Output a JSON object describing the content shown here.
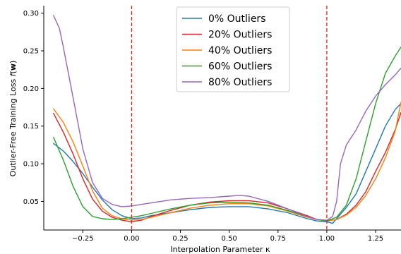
{
  "chart_data": {
    "type": "line",
    "title": "",
    "xlabel": "Interpolation Parameter κ",
    "ylabel": "Outlier-Free Training Loss f(w)",
    "ylabel_parts": {
      "main": "Outlier-Free Training Loss ",
      "func": "f",
      "open": "(",
      "var": "w",
      "close": ")"
    },
    "xlim": [
      -0.45,
      1.38
    ],
    "ylim": [
      0.012,
      0.31
    ],
    "x_ticks": [
      -0.25,
      0.0,
      0.25,
      0.5,
      0.75,
      1.0,
      1.25
    ],
    "x_tick_labels": [
      "−0.25",
      "0.00",
      "0.25",
      "0.50",
      "0.75",
      "1.00",
      "1.25"
    ],
    "y_ticks": [
      0.05,
      0.1,
      0.15,
      0.2,
      0.25,
      0.3
    ],
    "y_tick_labels": [
      "0.05",
      "0.10",
      "0.15",
      "0.20",
      "0.25",
      "0.30"
    ],
    "grid": false,
    "legend_position": "top-center",
    "reference_lines": [
      {
        "axis": "x",
        "value": 0.0,
        "style": "dashed",
        "color": "#d62728"
      },
      {
        "axis": "x",
        "value": 1.0,
        "style": "dashed",
        "color": "#d62728"
      }
    ],
    "series": [
      {
        "name": "0% Outliers",
        "color": "#1f77b4",
        "points": [
          [
            -0.4,
            0.127
          ],
          [
            -0.35,
            0.117
          ],
          [
            -0.3,
            0.103
          ],
          [
            -0.25,
            0.087
          ],
          [
            -0.2,
            0.069
          ],
          [
            -0.15,
            0.052
          ],
          [
            -0.1,
            0.039
          ],
          [
            -0.05,
            0.031
          ],
          [
            0.0,
            0.027
          ],
          [
            0.05,
            0.028
          ],
          [
            0.1,
            0.031
          ],
          [
            0.2,
            0.035
          ],
          [
            0.3,
            0.039
          ],
          [
            0.4,
            0.042
          ],
          [
            0.5,
            0.043
          ],
          [
            0.6,
            0.043
          ],
          [
            0.7,
            0.04
          ],
          [
            0.8,
            0.035
          ],
          [
            0.9,
            0.027
          ],
          [
            0.95,
            0.024
          ],
          [
            1.0,
            0.023
          ],
          [
            1.03,
            0.021
          ],
          [
            1.06,
            0.03
          ],
          [
            1.1,
            0.042
          ],
          [
            1.15,
            0.06
          ],
          [
            1.2,
            0.09
          ],
          [
            1.25,
            0.12
          ],
          [
            1.3,
            0.15
          ],
          [
            1.35,
            0.172
          ],
          [
            1.38,
            0.18
          ]
        ]
      },
      {
        "name": "20% Outliers",
        "color": "#d62728",
        "points": [
          [
            -0.4,
            0.167
          ],
          [
            -0.35,
            0.142
          ],
          [
            -0.3,
            0.113
          ],
          [
            -0.25,
            0.08
          ],
          [
            -0.2,
            0.053
          ],
          [
            -0.15,
            0.037
          ],
          [
            -0.1,
            0.029
          ],
          [
            -0.05,
            0.025
          ],
          [
            0.0,
            0.023
          ],
          [
            0.05,
            0.025
          ],
          [
            0.1,
            0.03
          ],
          [
            0.2,
            0.038
          ],
          [
            0.3,
            0.045
          ],
          [
            0.4,
            0.049
          ],
          [
            0.5,
            0.051
          ],
          [
            0.6,
            0.051
          ],
          [
            0.7,
            0.048
          ],
          [
            0.8,
            0.04
          ],
          [
            0.9,
            0.031
          ],
          [
            0.95,
            0.026
          ],
          [
            1.0,
            0.024
          ],
          [
            1.05,
            0.026
          ],
          [
            1.1,
            0.033
          ],
          [
            1.15,
            0.045
          ],
          [
            1.2,
            0.063
          ],
          [
            1.25,
            0.09
          ],
          [
            1.3,
            0.115
          ],
          [
            1.35,
            0.145
          ],
          [
            1.38,
            0.168
          ]
        ]
      },
      {
        "name": "40% Outliers",
        "color": "#ff7f0e",
        "points": [
          [
            -0.4,
            0.173
          ],
          [
            -0.35,
            0.155
          ],
          [
            -0.3,
            0.129
          ],
          [
            -0.25,
            0.097
          ],
          [
            -0.2,
            0.064
          ],
          [
            -0.15,
            0.041
          ],
          [
            -0.1,
            0.031
          ],
          [
            -0.05,
            0.027
          ],
          [
            0.0,
            0.025
          ],
          [
            0.05,
            0.026
          ],
          [
            0.1,
            0.029
          ],
          [
            0.2,
            0.035
          ],
          [
            0.3,
            0.041
          ],
          [
            0.4,
            0.045
          ],
          [
            0.5,
            0.047
          ],
          [
            0.6,
            0.047
          ],
          [
            0.7,
            0.044
          ],
          [
            0.8,
            0.037
          ],
          [
            0.9,
            0.029
          ],
          [
            0.95,
            0.026
          ],
          [
            1.0,
            0.024
          ],
          [
            1.05,
            0.026
          ],
          [
            1.1,
            0.032
          ],
          [
            1.15,
            0.042
          ],
          [
            1.2,
            0.058
          ],
          [
            1.25,
            0.08
          ],
          [
            1.3,
            0.108
          ],
          [
            1.35,
            0.143
          ],
          [
            1.38,
            0.182
          ]
        ]
      },
      {
        "name": "60% Outliers",
        "color": "#2ca02c",
        "points": [
          [
            -0.4,
            0.135
          ],
          [
            -0.35,
            0.105
          ],
          [
            -0.3,
            0.07
          ],
          [
            -0.25,
            0.043
          ],
          [
            -0.2,
            0.03
          ],
          [
            -0.15,
            0.027
          ],
          [
            -0.1,
            0.026
          ],
          [
            -0.05,
            0.027
          ],
          [
            0.0,
            0.029
          ],
          [
            0.05,
            0.031
          ],
          [
            0.1,
            0.034
          ],
          [
            0.2,
            0.04
          ],
          [
            0.3,
            0.045
          ],
          [
            0.4,
            0.048
          ],
          [
            0.5,
            0.049
          ],
          [
            0.6,
            0.048
          ],
          [
            0.7,
            0.045
          ],
          [
            0.8,
            0.038
          ],
          [
            0.9,
            0.03
          ],
          [
            0.95,
            0.026
          ],
          [
            1.0,
            0.024
          ],
          [
            1.05,
            0.029
          ],
          [
            1.1,
            0.045
          ],
          [
            1.15,
            0.08
          ],
          [
            1.2,
            0.13
          ],
          [
            1.25,
            0.18
          ],
          [
            1.3,
            0.22
          ],
          [
            1.35,
            0.243
          ],
          [
            1.38,
            0.255
          ]
        ]
      },
      {
        "name": "80% Outliers",
        "color": "#9467bd",
        "points": [
          [
            -0.4,
            0.297
          ],
          [
            -0.37,
            0.28
          ],
          [
            -0.35,
            0.255
          ],
          [
            -0.3,
            0.188
          ],
          [
            -0.25,
            0.12
          ],
          [
            -0.2,
            0.075
          ],
          [
            -0.15,
            0.054
          ],
          [
            -0.1,
            0.046
          ],
          [
            -0.05,
            0.043
          ],
          [
            0.0,
            0.044
          ],
          [
            0.05,
            0.046
          ],
          [
            0.1,
            0.048
          ],
          [
            0.2,
            0.052
          ],
          [
            0.3,
            0.054
          ],
          [
            0.4,
            0.055
          ],
          [
            0.5,
            0.057
          ],
          [
            0.55,
            0.058
          ],
          [
            0.6,
            0.057
          ],
          [
            0.7,
            0.05
          ],
          [
            0.8,
            0.04
          ],
          [
            0.9,
            0.03
          ],
          [
            0.95,
            0.026
          ],
          [
            1.0,
            0.025
          ],
          [
            1.03,
            0.03
          ],
          [
            1.05,
            0.05
          ],
          [
            1.07,
            0.1
          ],
          [
            1.1,
            0.125
          ],
          [
            1.15,
            0.145
          ],
          [
            1.2,
            0.17
          ],
          [
            1.25,
            0.19
          ],
          [
            1.3,
            0.205
          ],
          [
            1.35,
            0.218
          ],
          [
            1.38,
            0.227
          ]
        ]
      }
    ]
  }
}
